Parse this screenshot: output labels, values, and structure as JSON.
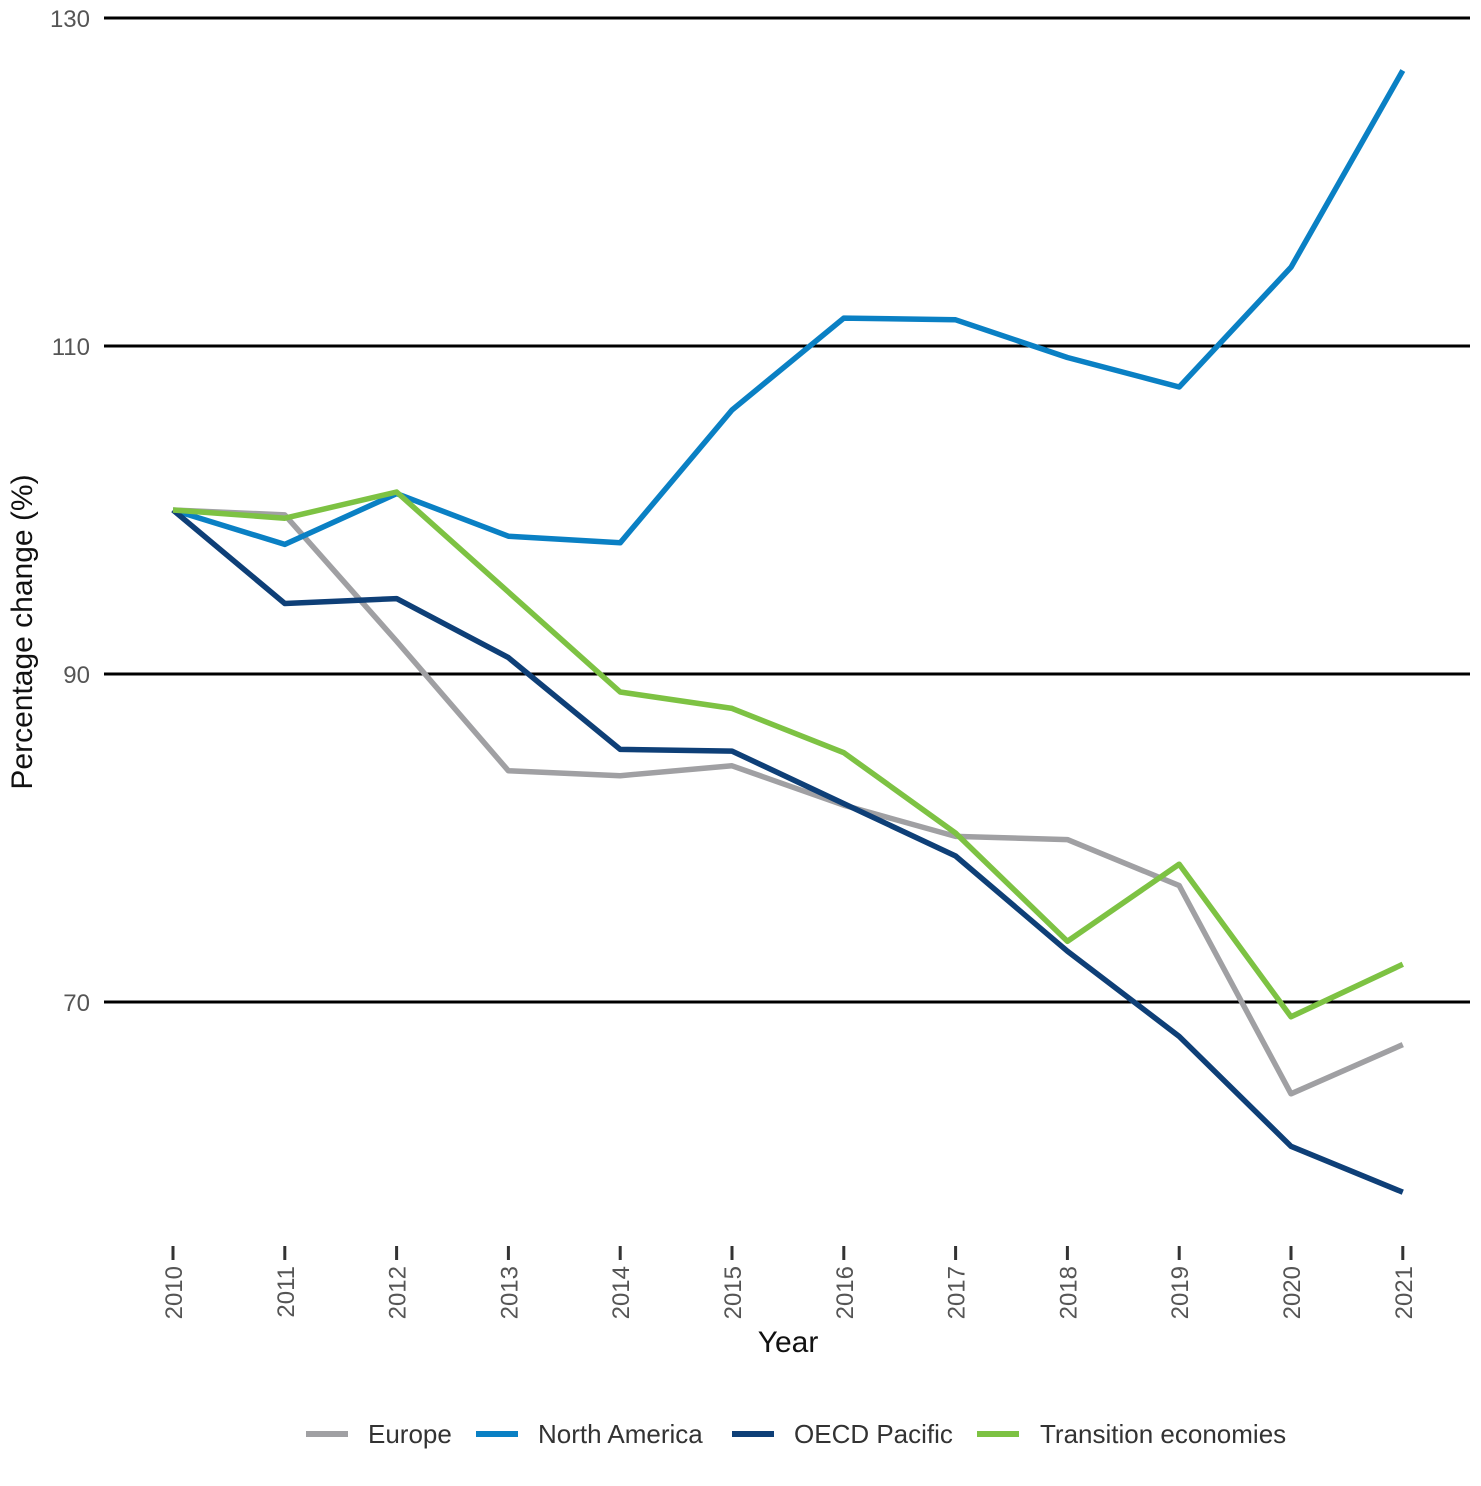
{
  "chart_data": {
    "type": "line",
    "title": "",
    "xlabel": "Year",
    "ylabel": "Percentage change (%)",
    "x": [
      "2010",
      "2011",
      "2012",
      "2013",
      "2014",
      "2015",
      "2016",
      "2017",
      "2018",
      "2019",
      "2020",
      "2021"
    ],
    "ylim": [
      55,
      130
    ],
    "yticks": [
      70,
      90,
      110,
      130
    ],
    "grid": "horizontal",
    "legend_position": "bottom",
    "series": [
      {
        "name": "Europe",
        "color": "#a0a0a3",
        "values": [
          100,
          99.7,
          92,
          84.1,
          83.8,
          84.4,
          82,
          80.1,
          79.9,
          77.1,
          64.4,
          67.4
        ]
      },
      {
        "name": "North America",
        "color": "#0a80c4",
        "values": [
          100,
          97.9,
          101,
          98.4,
          98,
          106.1,
          111.7,
          111.6,
          109.3,
          107.5,
          114.8,
          126.8
        ]
      },
      {
        "name": "OECD Pacific",
        "color": "#0e3f77",
        "values": [
          100,
          94.3,
          94.6,
          91,
          85.4,
          85.3,
          82.1,
          78.9,
          73.1,
          67.9,
          61.2,
          58.4
        ]
      },
      {
        "name": "Transition economies",
        "color": "#7dc243",
        "values": [
          100,
          99.5,
          101.1,
          95,
          88.9,
          87.9,
          85.2,
          80.3,
          73.7,
          78.4,
          69.1,
          72.3
        ]
      }
    ]
  }
}
